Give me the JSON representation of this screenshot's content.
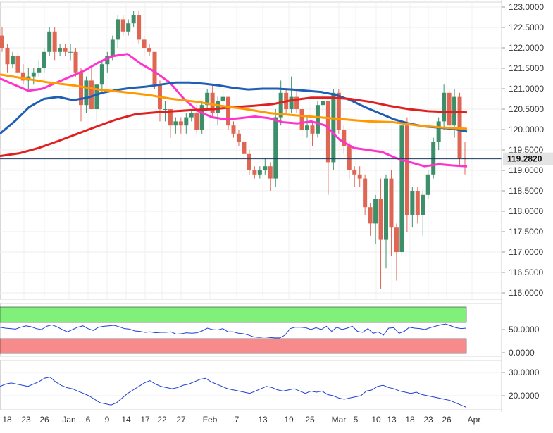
{
  "chart_data": [
    {
      "type": "candlestick",
      "title": "",
      "ylim": [
        115.7,
        123.15
      ],
      "y_ticks": [
        "123.0000",
        "122.5000",
        "122.0000",
        "121.5000",
        "121.0000",
        "120.5000",
        "120.0000",
        "119.5000",
        "119.0000",
        "118.5000",
        "118.0000",
        "117.5000",
        "117.0000",
        "116.5000",
        "116.0000"
      ],
      "x_ticks": [
        "18",
        "23",
        "26",
        "Jan",
        "6",
        "9",
        "14",
        "17",
        "22",
        "27",
        "Feb",
        "7",
        "13",
        "19",
        "25",
        "Mar",
        "5",
        "10",
        "13",
        "18",
        "23",
        "26",
        "Apr"
      ],
      "last_price": 119.282,
      "last_price_label": "119.2820",
      "candles": [
        [
          122.3,
          122.5,
          121.9,
          122.0
        ],
        [
          122.0,
          122.1,
          121.4,
          121.6
        ],
        [
          121.6,
          121.9,
          121.5,
          121.8
        ],
        [
          121.8,
          121.9,
          121.3,
          121.4
        ],
        [
          121.4,
          121.6,
          121.1,
          121.2
        ],
        [
          121.2,
          121.5,
          121.0,
          121.3
        ],
        [
          121.3,
          121.5,
          121.1,
          121.4
        ],
        [
          121.4,
          121.7,
          121.3,
          121.5
        ],
        [
          121.5,
          122.0,
          121.4,
          121.9
        ],
        [
          121.9,
          122.5,
          121.8,
          122.4
        ],
        [
          122.4,
          122.5,
          121.7,
          121.9
        ],
        [
          121.9,
          122.1,
          121.8,
          122.0
        ],
        [
          122.0,
          122.1,
          121.8,
          121.9
        ],
        [
          121.9,
          122.1,
          121.7,
          121.9
        ],
        [
          121.9,
          122.0,
          121.3,
          121.4
        ],
        [
          121.4,
          121.5,
          120.2,
          120.6
        ],
        [
          120.6,
          121.3,
          120.4,
          121.2
        ],
        [
          121.2,
          121.5,
          120.5,
          120.5
        ],
        [
          120.5,
          121.1,
          120.2,
          121.1
        ],
        [
          121.1,
          121.7,
          120.9,
          121.6
        ],
        [
          121.6,
          121.9,
          121.4,
          121.8
        ],
        [
          121.8,
          122.3,
          121.7,
          122.2
        ],
        [
          122.2,
          122.8,
          122.0,
          122.7
        ],
        [
          122.7,
          122.8,
          122.3,
          122.4
        ],
        [
          122.4,
          122.7,
          122.3,
          122.6
        ],
        [
          122.6,
          122.9,
          122.5,
          122.8
        ],
        [
          122.8,
          122.9,
          122.1,
          122.2
        ],
        [
          122.2,
          122.3,
          121.8,
          122.0
        ],
        [
          122.0,
          122.1,
          121.8,
          121.9
        ],
        [
          121.9,
          121.9,
          121.0,
          121.1
        ],
        [
          121.1,
          121.2,
          120.2,
          120.5
        ],
        [
          120.5,
          120.7,
          120.2,
          120.5
        ],
        [
          120.5,
          120.5,
          119.8,
          120.1
        ],
        [
          120.1,
          120.3,
          119.9,
          120.2
        ],
        [
          120.2,
          120.3,
          119.9,
          120.1
        ],
        [
          120.1,
          120.4,
          119.9,
          120.3
        ],
        [
          120.3,
          120.5,
          120.2,
          120.4
        ],
        [
          120.4,
          120.6,
          119.9,
          120.0
        ],
        [
          120.0,
          120.7,
          119.9,
          120.6
        ],
        [
          120.6,
          121.0,
          120.5,
          120.9
        ],
        [
          120.9,
          121.1,
          120.3,
          120.4
        ],
        [
          120.4,
          120.8,
          120.1,
          120.7
        ],
        [
          120.7,
          121.0,
          120.5,
          120.8
        ],
        [
          120.8,
          120.8,
          120.0,
          120.1
        ],
        [
          120.1,
          120.2,
          119.8,
          119.9
        ],
        [
          119.9,
          120.0,
          119.6,
          119.7
        ],
        [
          119.7,
          119.8,
          119.3,
          119.4
        ],
        [
          119.4,
          119.5,
          118.9,
          119.0
        ],
        [
          119.0,
          119.1,
          118.8,
          118.9
        ],
        [
          118.9,
          119.1,
          118.8,
          119.0
        ],
        [
          119.0,
          119.3,
          118.9,
          119.1
        ],
        [
          119.1,
          119.2,
          118.5,
          118.8
        ],
        [
          118.8,
          120.5,
          118.6,
          120.3
        ],
        [
          120.3,
          121.2,
          120.1,
          120.9
        ],
        [
          120.9,
          121.0,
          120.4,
          120.5
        ],
        [
          120.5,
          121.3,
          120.4,
          120.8
        ],
        [
          120.8,
          121.0,
          120.4,
          120.5
        ],
        [
          120.5,
          120.6,
          119.8,
          120.0
        ],
        [
          120.0,
          120.3,
          119.8,
          120.1
        ],
        [
          120.1,
          120.2,
          119.6,
          119.9
        ],
        [
          119.9,
          120.7,
          119.8,
          120.6
        ],
        [
          120.6,
          121.0,
          120.4,
          120.7
        ],
        [
          120.7,
          120.7,
          118.4,
          119.2
        ],
        [
          119.2,
          121.0,
          119.0,
          120.9
        ],
        [
          120.9,
          121.0,
          119.9,
          120.0
        ],
        [
          120.0,
          120.1,
          119.4,
          119.6
        ],
        [
          119.6,
          119.7,
          118.8,
          119.0
        ],
        [
          119.0,
          119.1,
          118.6,
          118.9
        ],
        [
          118.9,
          119.1,
          118.6,
          118.8
        ],
        [
          118.8,
          118.9,
          117.9,
          118.1
        ],
        [
          118.1,
          118.2,
          117.4,
          117.7
        ],
        [
          117.7,
          118.4,
          117.2,
          118.3
        ],
        [
          118.3,
          118.8,
          116.1,
          117.3
        ],
        [
          117.3,
          118.9,
          116.6,
          118.8
        ],
        [
          118.8,
          119.0,
          116.9,
          117.6
        ],
        [
          117.6,
          117.7,
          116.3,
          117.0
        ],
        [
          117.0,
          120.2,
          116.9,
          120.1
        ],
        [
          120.1,
          120.3,
          117.5,
          117.9
        ],
        [
          117.9,
          118.6,
          117.6,
          118.5
        ],
        [
          118.5,
          118.6,
          117.7,
          117.9
        ],
        [
          117.9,
          118.5,
          117.4,
          118.4
        ],
        [
          118.4,
          119.0,
          118.3,
          118.9
        ],
        [
          118.9,
          119.8,
          118.8,
          119.7
        ],
        [
          119.7,
          120.3,
          119.5,
          120.2
        ],
        [
          120.2,
          121.1,
          120.0,
          120.9
        ],
        [
          120.9,
          121.0,
          119.9,
          120.1
        ],
        [
          120.1,
          121.0,
          119.8,
          120.8
        ],
        [
          120.8,
          120.9,
          119.1,
          119.3
        ],
        [
          119.3,
          119.7,
          118.9,
          119.28
        ]
      ],
      "series": [
        {
          "name": "",
          "color": "#ff33cc",
          "values": [
            121.25,
            121.1,
            120.95,
            121.0,
            121.15,
            121.3,
            121.45,
            121.65,
            121.8,
            121.85,
            121.6,
            121.4,
            121.15,
            120.75,
            120.45,
            120.3,
            120.25,
            120.28,
            120.32,
            120.28,
            120.18,
            120.15,
            120.2,
            120.1,
            119.75,
            119.55,
            119.5,
            119.45,
            119.3,
            119.2,
            119.1,
            119.15,
            119.12,
            119.1
          ]
        },
        {
          "name": "",
          "color": "#1f5fb3",
          "values": [
            119.9,
            120.2,
            120.55,
            120.75,
            120.8,
            120.72,
            120.78,
            120.9,
            120.97,
            121.02,
            121.05,
            121.1,
            121.15,
            121.15,
            121.12,
            121.08,
            121.02,
            120.98,
            121.0,
            121.0,
            120.98,
            120.95,
            120.92,
            120.85,
            120.72,
            120.55,
            120.4,
            120.25,
            120.15,
            120.08,
            120.05,
            120.02,
            119.95
          ]
        },
        {
          "name": "",
          "color": "#e02020",
          "values": [
            119.35,
            119.42,
            119.55,
            119.72,
            119.9,
            120.08,
            120.25,
            120.38,
            120.42,
            120.45,
            120.48,
            120.5,
            120.55,
            120.58,
            120.62,
            120.72,
            120.78,
            120.78,
            120.75,
            120.68,
            120.58,
            120.5,
            120.45,
            120.43,
            120.42
          ]
        },
        {
          "name": "",
          "color": "#ff9900",
          "values": [
            121.35,
            121.25,
            121.15,
            121.08,
            120.98,
            120.92,
            120.85,
            120.75,
            120.68,
            120.58,
            120.5,
            120.4,
            120.35,
            120.3,
            120.25,
            120.2,
            120.18,
            120.1,
            120.05,
            120.02
          ]
        }
      ]
    },
    {
      "type": "line",
      "y_ticks": [
        "50.0000",
        "0.0000"
      ],
      "ylim": [
        0,
        100
      ],
      "color": "#1f3fd6",
      "values": [
        55,
        53,
        52,
        51,
        55,
        58,
        56,
        52,
        50,
        57,
        60,
        56,
        50,
        45,
        50,
        55,
        58,
        52,
        48,
        55,
        57,
        58,
        59,
        56,
        52,
        51,
        47,
        46,
        44,
        45,
        43,
        44,
        44,
        45,
        40,
        41,
        43,
        42,
        43,
        47,
        53,
        50,
        49,
        52,
        45,
        45,
        42,
        41,
        38,
        34,
        33,
        34,
        33,
        32,
        32,
        38,
        52,
        55,
        55,
        54,
        50,
        54,
        50,
        57,
        46,
        55,
        50,
        53,
        57,
        46,
        44,
        52,
        42,
        45,
        38,
        53,
        54,
        42,
        46,
        55,
        53,
        52,
        50,
        54,
        57,
        60,
        62,
        58,
        54,
        52,
        53
      ]
    },
    {
      "type": "line",
      "y_ticks": [
        "30.0000",
        "20.0000"
      ],
      "ylim": [
        13,
        33
      ],
      "color": "#1f3fd6",
      "values": [
        24,
        25,
        25.5,
        25,
        24.5,
        24,
        25,
        26,
        27.5,
        28,
        26,
        24.5,
        23.5,
        23,
        22,
        21,
        20,
        18.5,
        17,
        16.5,
        16,
        17,
        19,
        21,
        22.5,
        24,
        25.5,
        26.5,
        25,
        24,
        23.5,
        23,
        23.5,
        24.5,
        25,
        26,
        27,
        27.5,
        26,
        25,
        24,
        23,
        22.5,
        22,
        21.5,
        21,
        22,
        23,
        24,
        23.5,
        22.5,
        22,
        22.5,
        23,
        22,
        21,
        22,
        21.5,
        22,
        20.5,
        20,
        19,
        18.5,
        19,
        19.5,
        20,
        22,
        22.5,
        24,
        24.5,
        23.5,
        23,
        22,
        21.5,
        21,
        21.5,
        20.5,
        20,
        19.5,
        19,
        18.5,
        18,
        17,
        16,
        15
      ]
    }
  ]
}
